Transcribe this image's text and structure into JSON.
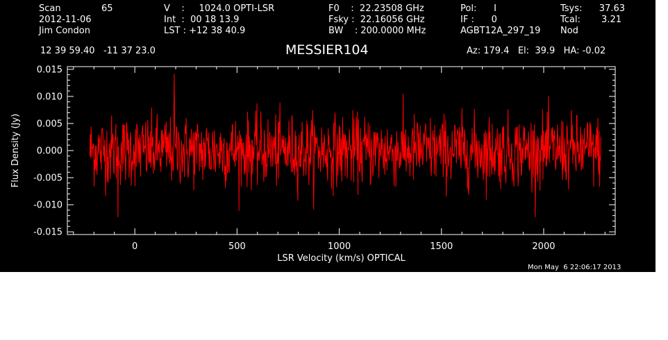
{
  "header": {
    "col1": {
      "row1_label": "Scan",
      "row1_value": "65",
      "row2": "2012-11-06",
      "row3": "Jim Condon"
    },
    "col2": {
      "row1": "V    :     1024.0 OPTI-LSR",
      "row2": "Int  :  00 18 13.9",
      "row3": "LST : +12 38 40.9"
    },
    "col3": {
      "row1": "F0    :  22.23508 GHz",
      "row2": "Fsky :  22.16056 GHz",
      "row3": "BW    : 200.0000 MHz"
    },
    "col4": {
      "row1": "Pol:      I",
      "row2": "IF :      0",
      "row3": "AGBT12A_297_19"
    },
    "col5": {
      "row1_label": "Tsys:",
      "row1_value": "37.63",
      "row2_label": "Tcal:",
      "row2_value": "3.21",
      "row3": "Nod"
    },
    "coords": "12 39 59.40   -11 37 23.0",
    "source": "MESSIER104",
    "az_el_ha": "Az: 179.4   El:  39.9   HA: -0.02",
    "timestamp": "Mon May  6 22:06:17 2013"
  },
  "colors": {
    "background": "#000000",
    "axes": "#ffffff",
    "trace": "#ff0000"
  },
  "chart_data": {
    "type": "line",
    "title": "MESSIER104",
    "xlabel": "LSR Velocity (km/s) OPTICAL",
    "ylabel": "Flux Density (Jy)",
    "xlim": [
      -330,
      2350
    ],
    "ylim": [
      -0.0155,
      0.0155
    ],
    "xticks": [
      0,
      500,
      1000,
      1500,
      2000
    ],
    "xtick_labels": [
      "0",
      "500",
      "1000",
      "1500",
      "2000"
    ],
    "yticks": [
      -0.015,
      -0.01,
      -0.005,
      0.0,
      0.005,
      0.01,
      0.015
    ],
    "ytick_labels": [
      "-0.015",
      "-0.010",
      "-0.005",
      "0.000",
      "0.005",
      "0.010",
      "0.015"
    ],
    "grid": false,
    "series": [
      {
        "color": "#ff0000",
        "note_style": "noise-spectrum",
        "x_start": -220,
        "x_end": 2280,
        "points": 1200,
        "mean": 0.0,
        "rms": 0.0032,
        "max": 0.0142,
        "min": -0.0123
      }
    ]
  }
}
